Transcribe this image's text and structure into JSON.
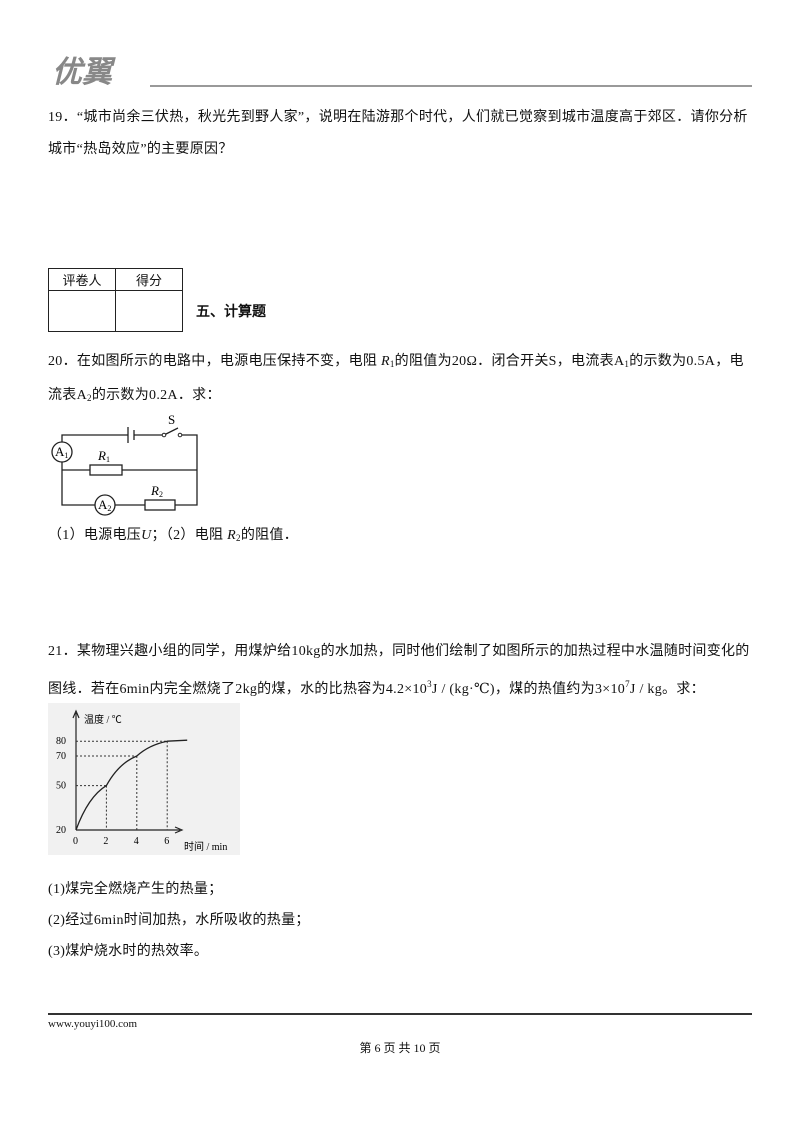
{
  "header": {
    "logo": "优翼"
  },
  "q19": {
    "text": "19．“城市尚余三伏热，秋光先到野人家”，说明在陆游那个时代，人们就已觉察到城市温度高于郊区．请你分析城市“热岛效应”的主要原因？"
  },
  "score_table": {
    "headers": [
      "评卷人",
      "得分"
    ]
  },
  "section": {
    "title": "五、计算题"
  },
  "q20": {
    "text": [
      "20．在如图所示的电路中，电源电压保持不变，电阻 ",
      "R",
      "1",
      "的阻值为20Ω．闭合开关S，电流表A",
      "1",
      "的示数为0.5A，电流表A",
      "2",
      "的示数为0.2A．求："
    ],
    "parts": [
      "（1）电源电压",
      "U",
      "；（2）电阻 ",
      "R",
      "2",
      "的阻值．"
    ]
  },
  "circuit": {
    "switch": "S",
    "ammeter1": [
      "A",
      "1"
    ],
    "resistor1": [
      "R",
      "1"
    ],
    "ammeter2": [
      "A",
      "2"
    ],
    "resistor2": [
      "R",
      "2"
    ]
  },
  "q21": {
    "text": [
      "21．某物理兴趣小组的同学，用煤炉给10kg的水加热，同时他们绘制了如图所示的加热过程中水温随时间变化的图线．若在6min内完全燃烧了2kg的煤，水的比热容为4.2×10",
      "3",
      "J / (kg·℃)，煤的热值约为3×10",
      "7",
      "J / kg。求："
    ],
    "parts": [
      "(1)煤完全燃烧产生的热量；",
      "(2)经过6min时间加热，水所吸收的热量；",
      "(3)煤炉烧水时的热效率。"
    ]
  },
  "graph": {
    "y_label": "温度 / ℃",
    "x_label": "时间 / min",
    "yticks": [
      20,
      50,
      70,
      80
    ],
    "xticks": [
      0,
      2,
      4,
      6
    ]
  },
  "footer": {
    "url": "www.youyi100.com",
    "page": "第 6 页 共 10 页"
  }
}
